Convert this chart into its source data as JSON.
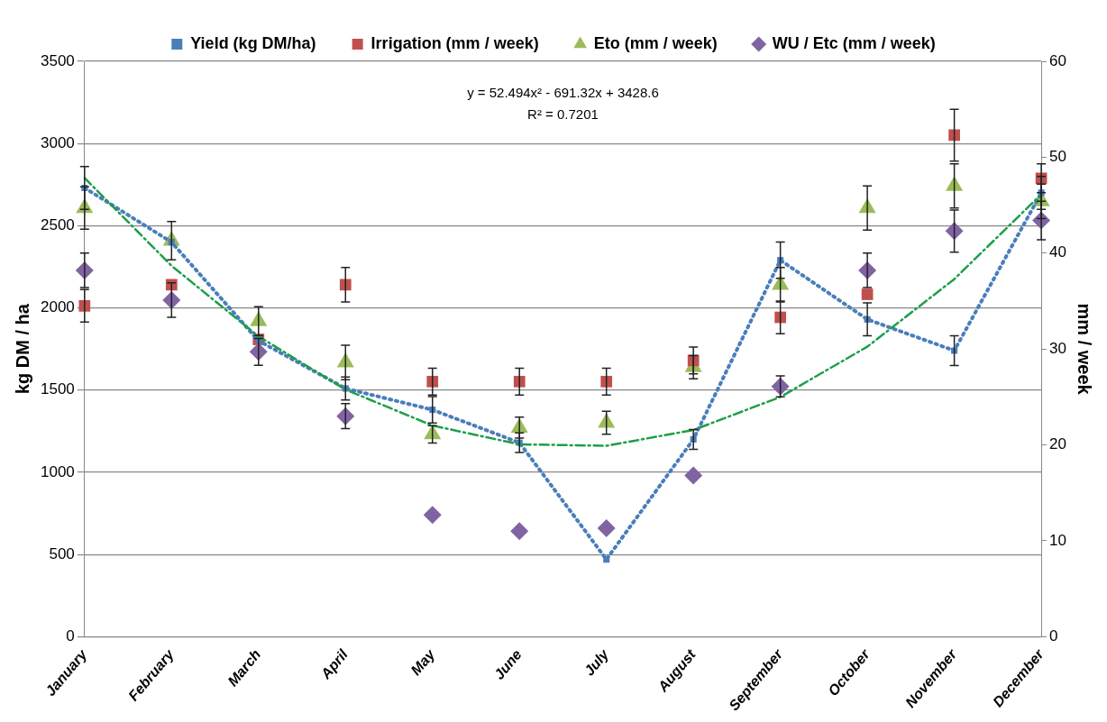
{
  "chart_data": {
    "type": "scatter",
    "categories": [
      "January",
      "February",
      "March",
      "April",
      "May",
      "June",
      "July",
      "August",
      "September",
      "October",
      "November",
      "December"
    ],
    "ylabel": "kg DM / ha",
    "y2label": "mm / week",
    "ylim": [
      0,
      3500
    ],
    "yticks": [
      0,
      500,
      1000,
      1500,
      2000,
      2500,
      3000,
      3500
    ],
    "y2lim": [
      0,
      60
    ],
    "y2ticks": [
      0,
      10,
      20,
      30,
      40,
      50,
      60
    ],
    "grid": "y",
    "legend": "top",
    "annotations": [
      "y = 52.494x² - 691.32x + 3428.6",
      "R² = 0.7201"
    ],
    "series": [
      {
        "name": "Yield (kg DM/ha)",
        "type": "line",
        "color": "#4a7ebb",
        "marker": "square",
        "line_style": "dotted",
        "values": [
          2730,
          2400,
          1800,
          1510,
          1380,
          1180,
          470,
          1200,
          2290,
          1930,
          1740,
          2700
        ],
        "errors": [
          130,
          null,
          null,
          70,
          80,
          60,
          null,
          60,
          110,
          100,
          90,
          100
        ]
      },
      {
        "name": "Irrigation (mm / week)",
        "axis": "y2",
        "color": "#c0504d",
        "marker": "square",
        "values": [
          34.5,
          36.7,
          31,
          36.7,
          26.6,
          26.6,
          26.6,
          28.8,
          33.3,
          35.7,
          52.3,
          47.8
        ],
        "errors": [
          1.7,
          null,
          null,
          1.8,
          1.4,
          1.4,
          1.4,
          1.4,
          1.7,
          null,
          2.7,
          1.5
        ]
      },
      {
        "name": "Eto (mm / week)",
        "axis": "y2",
        "color": "#9bbb59",
        "marker": "triangle",
        "values": [
          44.7,
          41.3,
          32.9,
          28.6,
          21.1,
          21.8,
          22.3,
          28.1,
          36.7,
          44.7,
          47,
          45.4
        ],
        "errors": [
          2.2,
          2,
          1.5,
          1.8,
          0.9,
          1.1,
          1.2,
          1.2,
          1.8,
          2.3,
          2.3,
          1.8
        ]
      },
      {
        "name": "WU / Etc (mm / week)",
        "axis": "y2",
        "color": "#8064a2",
        "marker": "diamond",
        "values": [
          38.2,
          35.1,
          29.7,
          23,
          12.7,
          11,
          11.3,
          16.8,
          26.1,
          38.2,
          42.3,
          43.4
        ],
        "errors": [
          1.8,
          1.8,
          1.4,
          1.3,
          null,
          null,
          null,
          null,
          1.1,
          1.8,
          2.2,
          2
        ]
      },
      {
        "type": "line",
        "color": "#1e9e4a",
        "marker": "none",
        "line_style": "dashed",
        "values": [
          2790,
          2256,
          1827,
          1503,
          1284,
          1170,
          1161,
          1257,
          1458,
          1764,
          2175,
          2691
        ]
      }
    ]
  }
}
